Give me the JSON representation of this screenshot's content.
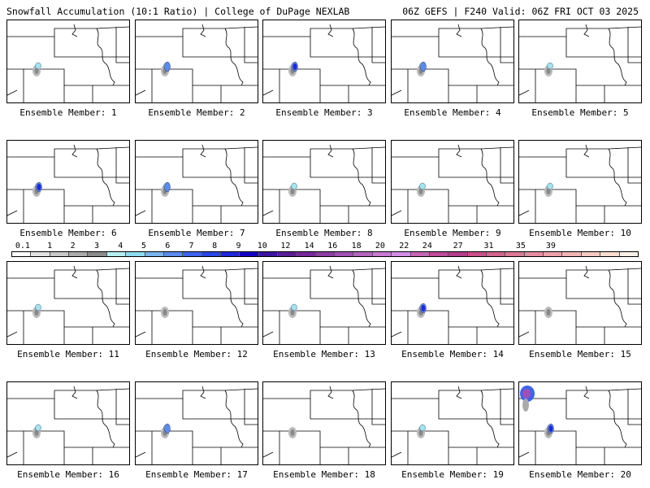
{
  "header": {
    "title_left": "Snowfall Accumulation (10:1 Ratio) | College of DuPage NEXLAB",
    "title_right": "06Z GEFS | F240 Valid: 06Z FRI OCT 03 2025"
  },
  "colorbar": {
    "labels": [
      "0.1",
      "1",
      "2",
      "3",
      "4",
      "5",
      "6",
      "7",
      "8",
      "9",
      "10",
      "12",
      "14",
      "16",
      "18",
      "20",
      "22",
      "24",
      "27",
      "31",
      "35",
      "39"
    ],
    "colors": [
      "#ffffff",
      "#e2e2e2",
      "#c8c8c8",
      "#aaaaaa",
      "#8c8c8c",
      "#b4f0f0",
      "#8cdcf0",
      "#78b4f0",
      "#5a8cf0",
      "#3c64f0",
      "#2846e6",
      "#1e28dc",
      "#1400c8",
      "#3c14a0",
      "#5a1e96",
      "#78289b",
      "#8c3ca5",
      "#a050b4",
      "#b464be",
      "#c878d2",
      "#d28ce6",
      "#c864b4",
      "#be4b9b",
      "#b43c8c",
      "#c8508c",
      "#d2648c",
      "#dc7896",
      "#e68ca0",
      "#f0a0aa",
      "#f0b4b4",
      "#f5c8c0",
      "#fadcd0",
      "#fff0e6"
    ]
  },
  "members": [
    {
      "label": "Ensemble Member: 1",
      "level": 2
    },
    {
      "label": "Ensemble Member: 2",
      "level": 4
    },
    {
      "label": "Ensemble Member: 3",
      "level": 5
    },
    {
      "label": "Ensemble Member: 4",
      "level": 4
    },
    {
      "label": "Ensemble Member: 5",
      "level": 2
    },
    {
      "label": "Ensemble Member: 6",
      "level": 5
    },
    {
      "label": "Ensemble Member: 7",
      "level": 4
    },
    {
      "label": "Ensemble Member: 8",
      "level": 3
    },
    {
      "label": "Ensemble Member: 9",
      "level": 2
    },
    {
      "label": "Ensemble Member: 10",
      "level": 2
    },
    {
      "label": "Ensemble Member: 11",
      "level": 2
    },
    {
      "label": "Ensemble Member: 12",
      "level": 1
    },
    {
      "label": "Ensemble Member: 13",
      "level": 2
    },
    {
      "label": "Ensemble Member: 14",
      "level": 5
    },
    {
      "label": "Ensemble Member: 15",
      "level": 1
    },
    {
      "label": "Ensemble Member: 16",
      "level": 2
    },
    {
      "label": "Ensemble Member: 17",
      "level": 4
    },
    {
      "label": "Ensemble Member: 18",
      "level": 1
    },
    {
      "label": "Ensemble Member: 19",
      "level": 2
    },
    {
      "label": "Ensemble Member: 20",
      "level": 6
    }
  ]
}
